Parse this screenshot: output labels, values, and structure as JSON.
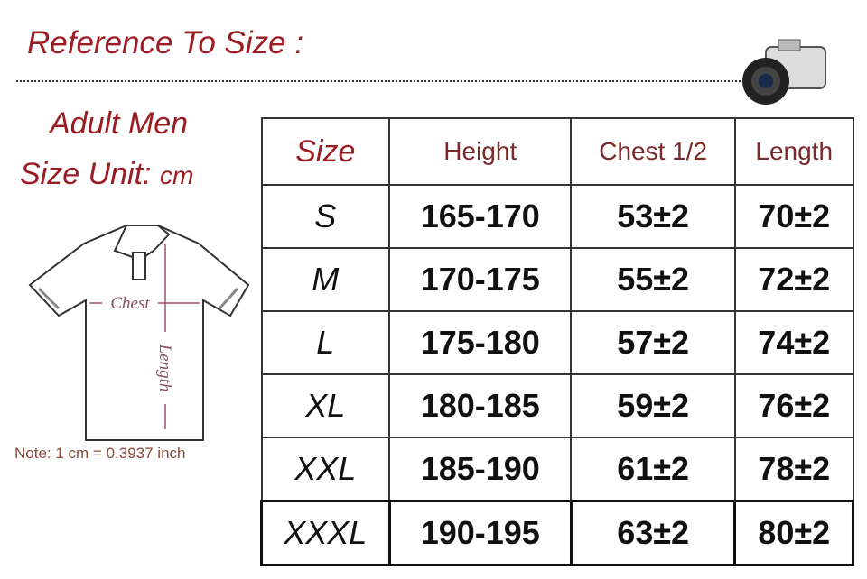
{
  "title": "Reference To Size :",
  "heading": {
    "line1": "Adult Men",
    "unit_label": "Size Unit:",
    "unit": "cm"
  },
  "diagram": {
    "chest_label": "Chest",
    "length_label": "Length"
  },
  "note": "Note: 1 cm = 0.3937 inch",
  "table": {
    "headers": [
      "Size",
      "Height",
      "Chest 1/2",
      "Length"
    ],
    "rows": [
      [
        "S",
        "165-170",
        "53±2",
        "70±2"
      ],
      [
        "M",
        "170-175",
        "55±2",
        "72±2"
      ],
      [
        "L",
        "175-180",
        "57±2",
        "74±2"
      ],
      [
        "XL",
        "180-185",
        "59±2",
        "76±2"
      ],
      [
        "XXL",
        "185-190",
        "61±2",
        "78±2"
      ],
      [
        "XXXL",
        "190-195",
        "63±2",
        "80±2"
      ]
    ]
  },
  "colors": {
    "accent": "#9b1c22"
  }
}
